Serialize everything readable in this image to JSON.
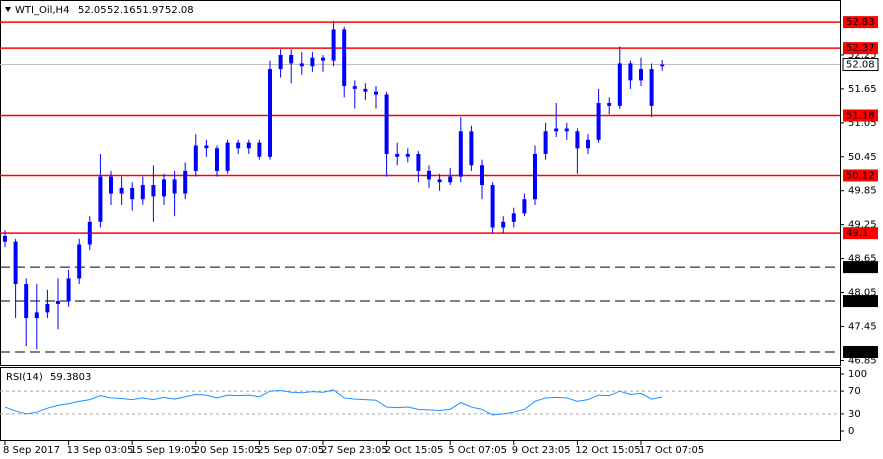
{
  "chart_data": [
    {
      "type": "candlestick",
      "title": "WTI_Oil,H4",
      "color": "#0000ff",
      "categories": [
        "8 Sep 2017",
        null,
        null,
        null,
        null,
        null,
        "13 Sep 03:05",
        null,
        null,
        null,
        null,
        null,
        "15 Sep 19:05",
        null,
        null,
        null,
        null,
        null,
        "20 Sep 15:05",
        null,
        null,
        null,
        null,
        null,
        "25 Sep 07:05",
        null,
        null,
        null,
        null,
        null,
        "27 Sep 23:05",
        null,
        null,
        null,
        null,
        null,
        "2 Oct 15:05",
        null,
        null,
        null,
        null,
        null,
        "5 Oct 07:05",
        null,
        null,
        null,
        null,
        null,
        "9 Oct 23:05",
        null,
        null,
        null,
        null,
        null,
        "12 Oct 15:05",
        null,
        null,
        null,
        null,
        null,
        "17 Oct 07:05",
        null,
        null
      ],
      "open": [
        49.05,
        48.95,
        48.2,
        47.6,
        47.7,
        47.85,
        47.9,
        48.3,
        48.9,
        49.3,
        50.1,
        49.8,
        49.9,
        49.7,
        49.95,
        49.75,
        50.05,
        49.8,
        50.2,
        50.65,
        50.6,
        50.2,
        50.7,
        50.6,
        50.7,
        50.45,
        52.0,
        52.25,
        52.1,
        52.05,
        52.2,
        52.15,
        52.7,
        51.7,
        51.65,
        51.6,
        51.55,
        50.5,
        50.45,
        50.5,
        50.2,
        50.05,
        50.0,
        50.1,
        50.9,
        50.3,
        49.95,
        49.2,
        49.3,
        49.45,
        49.7,
        50.5,
        50.9,
        50.95,
        50.9,
        50.6,
        50.75,
        51.4,
        51.35,
        52.1,
        51.8,
        52.0,
        52.05
      ],
      "high": [
        49.15,
        49.0,
        48.3,
        48.2,
        48.1,
        48.3,
        48.45,
        49.0,
        49.4,
        50.5,
        50.2,
        50.1,
        50.0,
        50.1,
        50.3,
        50.15,
        50.2,
        50.35,
        50.85,
        50.75,
        50.65,
        50.75,
        50.75,
        50.75,
        50.75,
        52.15,
        52.35,
        52.35,
        52.3,
        52.3,
        52.25,
        52.85,
        52.75,
        51.8,
        51.75,
        51.7,
        51.6,
        50.7,
        50.6,
        50.55,
        50.3,
        50.15,
        50.25,
        51.15,
        51.0,
        50.4,
        50.0,
        49.4,
        49.55,
        49.8,
        50.65,
        51.05,
        51.4,
        51.05,
        50.95,
        50.85,
        51.65,
        51.5,
        52.4,
        52.15,
        52.2,
        52.1,
        52.16
      ],
      "low": [
        48.85,
        47.6,
        47.1,
        47.05,
        47.6,
        47.4,
        47.8,
        48.2,
        48.8,
        49.2,
        49.6,
        49.6,
        49.5,
        49.6,
        49.3,
        49.6,
        49.4,
        49.7,
        50.1,
        50.45,
        50.1,
        50.15,
        50.5,
        50.5,
        50.4,
        50.4,
        51.85,
        51.75,
        51.9,
        51.95,
        51.95,
        52.05,
        51.5,
        51.3,
        51.45,
        51.3,
        50.1,
        50.3,
        50.35,
        50.0,
        49.9,
        49.85,
        49.95,
        50.0,
        50.2,
        49.7,
        49.1,
        49.1,
        49.2,
        49.4,
        49.6,
        50.4,
        50.8,
        50.75,
        50.15,
        50.5,
        50.7,
        51.2,
        51.3,
        51.65,
        51.7,
        51.15,
        51.97
      ],
      "close": [
        48.95,
        48.2,
        47.6,
        47.7,
        47.85,
        47.9,
        48.3,
        48.9,
        49.3,
        50.1,
        49.8,
        49.9,
        49.7,
        49.95,
        49.75,
        50.05,
        49.8,
        50.2,
        50.65,
        50.6,
        50.2,
        50.7,
        50.6,
        50.7,
        50.45,
        52.0,
        52.25,
        52.1,
        52.05,
        52.2,
        52.15,
        52.7,
        51.7,
        51.65,
        51.6,
        51.55,
        50.5,
        50.45,
        50.5,
        50.2,
        50.05,
        50.0,
        50.1,
        50.9,
        50.3,
        49.95,
        49.2,
        49.3,
        49.45,
        49.7,
        50.5,
        50.9,
        50.95,
        50.9,
        50.6,
        50.75,
        51.4,
        51.35,
        52.1,
        51.8,
        52.0,
        51.35,
        52.08
      ],
      "ylim": [
        46.77,
        53.15
      ],
      "yticks": [
        52.25,
        51.65,
        51.05,
        50.45,
        49.85,
        49.25,
        48.65,
        48.05,
        47.45,
        46.85
      ],
      "hlines": [
        {
          "value": 52.83,
          "color": "#ff0000",
          "style": "solid"
        },
        {
          "value": 52.37,
          "color": "#ff0000",
          "style": "solid"
        },
        {
          "value": 51.18,
          "color": "#ff0000",
          "style": "solid"
        },
        {
          "value": 50.12,
          "color": "#ff0000",
          "style": "solid"
        },
        {
          "value": 49.1,
          "color": "#ff0000",
          "style": "solid"
        },
        {
          "value": 48.5,
          "color": "#000000",
          "style": "dashed"
        },
        {
          "value": 47.9,
          "color": "#000000",
          "style": "dashed"
        },
        {
          "value": 47.0,
          "color": "#000000",
          "style": "dashed"
        }
      ]
    },
    {
      "type": "line",
      "title": "RSI(14)",
      "color": "#1e90ff",
      "values": [
        42,
        35,
        30,
        33,
        40,
        45,
        48,
        52,
        55,
        62,
        58,
        57,
        55,
        58,
        55,
        59,
        56,
        60,
        64,
        63,
        58,
        63,
        62,
        63,
        60,
        70,
        71,
        68,
        67,
        69,
        68,
        72,
        58,
        56,
        55,
        54,
        42,
        41,
        42,
        38,
        37,
        36,
        38,
        50,
        42,
        38,
        28,
        30,
        33,
        38,
        52,
        58,
        59,
        58,
        52,
        55,
        63,
        62,
        70,
        64,
        66,
        56,
        59.3803
      ],
      "ylim": [
        0,
        100
      ],
      "yticks": [
        100,
        70,
        30,
        0
      ],
      "levels": [
        70,
        30
      ]
    }
  ]
}
